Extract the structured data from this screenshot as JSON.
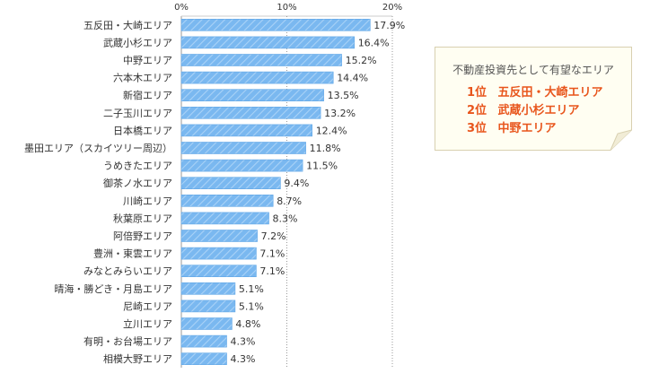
{
  "chart_data": {
    "type": "bar",
    "orientation": "horizontal",
    "categories": [
      "五反田・大崎エリア",
      "武蔵小杉エリア",
      "中野エリア",
      "六本木エリア",
      "新宿エリア",
      "二子玉川エリア",
      "日本橋エリア",
      "墨田エリア（スカイツリー周辺）",
      "うめきたエリア",
      "御茶ノ水エリア",
      "川崎エリア",
      "秋葉原エリア",
      "阿倍野エリア",
      "豊洲・東雲エリア",
      "みなとみらいエリア",
      "晴海・勝どき・月島エリア",
      "尼崎エリア",
      "立川エリア",
      "有明・お台場エリア",
      "相模大野エリア"
    ],
    "values": [
      17.9,
      16.4,
      15.2,
      14.4,
      13.5,
      13.2,
      12.4,
      11.8,
      11.5,
      9.4,
      8.7,
      8.3,
      7.2,
      7.1,
      7.1,
      5.1,
      5.1,
      4.8,
      4.3,
      4.3
    ],
    "value_labels": [
      "17.9%",
      "16.4%",
      "15.2%",
      "14.4%",
      "13.5%",
      "13.2%",
      "12.4%",
      "11.8%",
      "11.5%",
      "9.4%",
      "8.7%",
      "8.3%",
      "7.2%",
      "7.1%",
      "7.1%",
      "5.1%",
      "5.1%",
      "4.8%",
      "4.3%",
      "4.3%"
    ],
    "xlim": [
      0,
      20
    ],
    "ticks": [
      0,
      10,
      20
    ],
    "tick_labels": [
      "0%",
      "10%",
      "20%"
    ],
    "bar_color": "#7ab8f0",
    "gridline_at": 10
  },
  "callout": {
    "title": "不動産投資先として有望なエリア",
    "ranks": [
      {
        "rank": "1位",
        "name": "五反田・大崎エリア"
      },
      {
        "rank": "2位",
        "name": "武蔵小杉エリア"
      },
      {
        "rank": "3位",
        "name": "中野エリア"
      }
    ],
    "accent_color": "#e8551c",
    "border_color": "#d8d0b0"
  }
}
